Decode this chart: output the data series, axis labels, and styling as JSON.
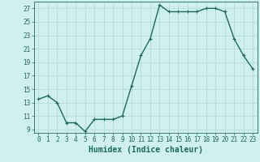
{
  "x": [
    0,
    1,
    2,
    3,
    4,
    5,
    6,
    7,
    8,
    9,
    10,
    11,
    12,
    13,
    14,
    15,
    16,
    17,
    18,
    19,
    20,
    21,
    22,
    23
  ],
  "y": [
    13.5,
    14.0,
    13.0,
    10.0,
    10.0,
    8.7,
    10.5,
    10.5,
    10.5,
    11.0,
    15.5,
    20.0,
    22.5,
    27.5,
    26.5,
    26.5,
    26.5,
    26.5,
    27.0,
    27.0,
    26.5,
    22.5,
    20.0,
    18.0
  ],
  "line_color": "#1a6b5a",
  "marker": "+",
  "marker_size": 3,
  "linewidth": 1.0,
  "xlabel": "Humidex (Indice chaleur)",
  "bg_color": "#cff0ee",
  "grid_color": "#b0d8d4",
  "yticks": [
    9,
    11,
    13,
    15,
    17,
    19,
    21,
    23,
    25,
    27
  ],
  "xticks": [
    0,
    1,
    2,
    3,
    4,
    5,
    6,
    7,
    8,
    9,
    10,
    11,
    12,
    13,
    14,
    15,
    16,
    17,
    18,
    19,
    20,
    21,
    22,
    23
  ],
  "xlim": [
    -0.5,
    23.5
  ],
  "ylim": [
    8.5,
    28.0
  ],
  "tick_fontsize": 5.5,
  "xlabel_fontsize": 7,
  "axis_color": "#1a6b5a"
}
